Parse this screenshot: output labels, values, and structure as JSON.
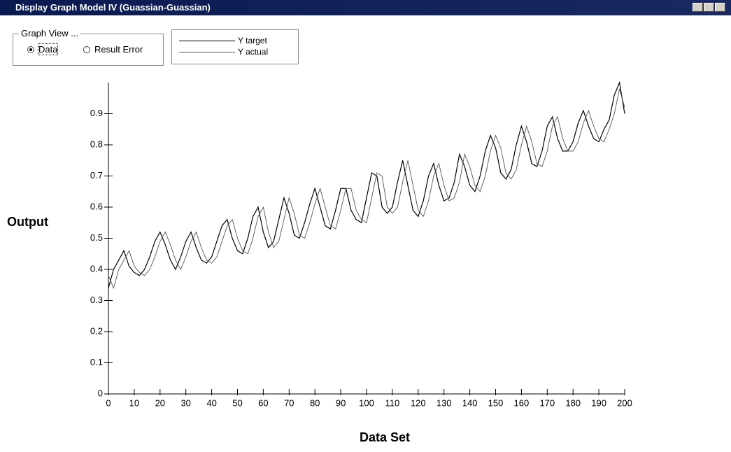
{
  "window": {
    "title": "Display Graph Model IV (Guassian-Guassian)"
  },
  "graph_view": {
    "label": "Graph View ...",
    "options": [
      "Data",
      "Result Error"
    ],
    "selected": 0
  },
  "chart_data": {
    "type": "line",
    "x_label": "Data Set",
    "y_label": "Output",
    "xlim": [
      0,
      200
    ],
    "ylim": [
      0,
      1.0
    ],
    "xticks": [
      0,
      10,
      20,
      30,
      40,
      50,
      60,
      70,
      80,
      90,
      100,
      110,
      120,
      130,
      140,
      150,
      160,
      170,
      180,
      190,
      200
    ],
    "yticks": [
      0,
      0.1,
      0.2,
      0.3,
      0.4,
      0.5,
      0.6,
      0.7,
      0.8,
      0.9
    ],
    "x": [
      0,
      2,
      4,
      6,
      8,
      10,
      12,
      14,
      16,
      18,
      20,
      22,
      24,
      26,
      28,
      30,
      32,
      34,
      36,
      38,
      40,
      42,
      44,
      46,
      48,
      50,
      52,
      54,
      56,
      58,
      60,
      62,
      64,
      66,
      68,
      70,
      72,
      74,
      76,
      78,
      80,
      82,
      84,
      86,
      88,
      90,
      92,
      94,
      96,
      98,
      100,
      102,
      104,
      106,
      108,
      110,
      112,
      114,
      116,
      118,
      120,
      122,
      124,
      126,
      128,
      130,
      132,
      134,
      136,
      138,
      140,
      142,
      144,
      146,
      148,
      150,
      152,
      154,
      156,
      158,
      160,
      162,
      164,
      166,
      168,
      170,
      172,
      174,
      176,
      178,
      180,
      182,
      184,
      186,
      188,
      190,
      192,
      194,
      196,
      198,
      200
    ],
    "series": [
      {
        "name": "Y target",
        "color": "#000000",
        "values": [
          0.34,
          0.4,
          0.43,
          0.46,
          0.41,
          0.39,
          0.38,
          0.4,
          0.44,
          0.49,
          0.52,
          0.48,
          0.43,
          0.4,
          0.44,
          0.49,
          0.52,
          0.47,
          0.43,
          0.42,
          0.44,
          0.49,
          0.54,
          0.56,
          0.5,
          0.46,
          0.45,
          0.5,
          0.57,
          0.6,
          0.52,
          0.47,
          0.49,
          0.56,
          0.63,
          0.58,
          0.51,
          0.5,
          0.55,
          0.61,
          0.66,
          0.6,
          0.54,
          0.53,
          0.59,
          0.66,
          0.66,
          0.59,
          0.56,
          0.55,
          0.63,
          0.71,
          0.7,
          0.6,
          0.58,
          0.6,
          0.68,
          0.75,
          0.67,
          0.59,
          0.57,
          0.62,
          0.7,
          0.74,
          0.67,
          0.62,
          0.63,
          0.68,
          0.77,
          0.73,
          0.67,
          0.65,
          0.7,
          0.78,
          0.83,
          0.79,
          0.71,
          0.69,
          0.72,
          0.8,
          0.86,
          0.81,
          0.74,
          0.73,
          0.78,
          0.86,
          0.89,
          0.82,
          0.78,
          0.78,
          0.81,
          0.87,
          0.91,
          0.86,
          0.82,
          0.81,
          0.85,
          0.88,
          0.96,
          1.0,
          0.9
        ]
      },
      {
        "name": "Y actual",
        "color": "#555555",
        "values": [
          0.38,
          0.34,
          0.4,
          0.43,
          0.46,
          0.41,
          0.39,
          0.38,
          0.4,
          0.44,
          0.49,
          0.52,
          0.48,
          0.43,
          0.4,
          0.44,
          0.49,
          0.52,
          0.47,
          0.43,
          0.42,
          0.44,
          0.49,
          0.54,
          0.56,
          0.5,
          0.46,
          0.45,
          0.5,
          0.57,
          0.6,
          0.52,
          0.47,
          0.49,
          0.56,
          0.63,
          0.58,
          0.51,
          0.5,
          0.55,
          0.61,
          0.66,
          0.6,
          0.54,
          0.53,
          0.59,
          0.66,
          0.66,
          0.59,
          0.56,
          0.55,
          0.63,
          0.71,
          0.7,
          0.6,
          0.58,
          0.6,
          0.68,
          0.75,
          0.67,
          0.59,
          0.57,
          0.62,
          0.7,
          0.74,
          0.67,
          0.62,
          0.63,
          0.68,
          0.77,
          0.73,
          0.67,
          0.65,
          0.7,
          0.78,
          0.83,
          0.79,
          0.71,
          0.69,
          0.72,
          0.8,
          0.86,
          0.81,
          0.74,
          0.73,
          0.78,
          0.86,
          0.89,
          0.82,
          0.78,
          0.78,
          0.81,
          0.87,
          0.91,
          0.86,
          0.82,
          0.81,
          0.85,
          0.9,
          0.98,
          0.92
        ]
      }
    ]
  }
}
